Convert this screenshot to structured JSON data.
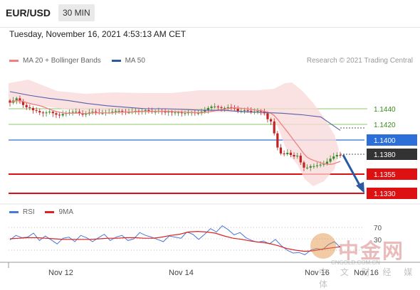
{
  "header": {
    "symbol": "EUR/USD",
    "timeframe": "30 MIN"
  },
  "timestamp": "Tuesday, November 16, 2021 4:53:13 AM CET",
  "legend": {
    "items": [
      {
        "label": "MA 20 + Bollinger Bands",
        "color": "#f08080"
      },
      {
        "label": "MA 50",
        "color": "#2c5aa0"
      }
    ],
    "credit": "Research © 2021 Trading Central"
  },
  "rsi_legend": {
    "items": [
      {
        "label": "RSI",
        "color": "#4a78d8"
      },
      {
        "label": "9MA",
        "color": "#dd2222"
      }
    ]
  },
  "watermark": {
    "name": "中金网",
    "url": "CNGOLD.COM.CN",
    "tagline": "中 文 财 经 媒 体"
  },
  "chart_data": {
    "type": "candlestick",
    "symbol": "EUR/USD",
    "timeframe": "30 MIN",
    "ylim": [
      1.1322,
      1.1486
    ],
    "x_ticks": [
      "Nov 12",
      "Nov 14",
      "Nov 16",
      "Nov 16"
    ],
    "levels": [
      {
        "value": "1.1440",
        "kind": "tick"
      },
      {
        "value": "1.1420",
        "kind": "tick"
      },
      {
        "value": "1.1400",
        "kind": "pivot",
        "color": "#2c6fd8"
      },
      {
        "value": "1.1380",
        "kind": "price",
        "color": "#333333"
      },
      {
        "value": "1.1355",
        "kind": "target",
        "color": "#dd1111"
      },
      {
        "value": "1.1330",
        "kind": "target",
        "color": "#dd1111"
      }
    ],
    "close_series": [
      1.1453,
      1.1456,
      1.1459,
      1.1455,
      1.145,
      1.1447,
      1.1446,
      1.1443,
      1.1442,
      1.144,
      1.1439,
      1.144,
      1.1441,
      1.1439,
      1.1437,
      1.1436,
      1.1438,
      1.1439,
      1.144,
      1.1441,
      1.1441,
      1.1439,
      1.1437,
      1.1438,
      1.144,
      1.1441,
      1.144,
      1.1439,
      1.1439,
      1.144,
      1.144,
      1.1441,
      1.1442,
      1.1442,
      1.1441,
      1.144,
      1.144,
      1.1441,
      1.1442,
      1.1441,
      1.1442,
      1.1443,
      1.1442,
      1.1441,
      1.1441,
      1.1442,
      1.1441,
      1.144,
      1.1441,
      1.144,
      1.144,
      1.144,
      1.1439,
      1.1439,
      1.144,
      1.144,
      1.1439,
      1.1439,
      1.1441,
      1.1443,
      1.1446,
      1.1448,
      1.1448,
      1.1447,
      1.1446,
      1.1446,
      1.1447,
      1.1446,
      1.1445,
      1.1442,
      1.1442,
      1.1443,
      1.1442,
      1.144,
      1.1441,
      1.1442,
      1.1441,
      1.1439,
      1.1431,
      1.1428,
      1.1412,
      1.1393,
      1.1385,
      1.1384,
      1.1386,
      1.1383,
      1.1381,
      1.1382,
      1.1373,
      1.1366,
      1.1366,
      1.1368,
      1.1368,
      1.1369,
      1.137,
      1.1371,
      1.1374,
      1.1378,
      1.1381,
      1.1383,
      1.1382
    ],
    "ma50_series": [
      1.1468,
      1.1463,
      1.1459,
      1.1456,
      1.1452,
      1.1449,
      1.1447,
      1.1445,
      1.1445,
      1.1444,
      1.1443,
      1.1443,
      1.1441,
      1.144,
      1.1439,
      1.1437,
      1.1434,
      1.1416
    ],
    "projection_arrow": {
      "from": 1.1378,
      "to": 1.133
    },
    "rsi": {
      "levels": [
        "70",
        "30"
      ],
      "rsi_series": [
        48,
        56,
        52,
        53,
        60,
        47,
        55,
        48,
        41,
        51,
        53,
        45,
        56,
        52,
        45,
        52,
        58,
        47,
        53,
        56,
        47,
        50,
        61,
        56,
        53,
        49,
        45,
        55,
        53,
        51,
        62,
        58,
        49,
        58,
        68,
        62,
        73,
        66,
        57,
        61,
        52,
        47,
        44,
        46,
        41,
        49,
        38,
        30,
        25,
        26,
        22,
        30,
        33,
        31,
        40,
        45,
        35
      ],
      "ma9_series": [
        50,
        51,
        52,
        52,
        51,
        50,
        49,
        49,
        49,
        49,
        50,
        51,
        51,
        52,
        52,
        51,
        51,
        53,
        56,
        58,
        62,
        63,
        62,
        60,
        55,
        51,
        49,
        46,
        44,
        42,
        38,
        33,
        30,
        28,
        29,
        32,
        34,
        36
      ]
    }
  }
}
